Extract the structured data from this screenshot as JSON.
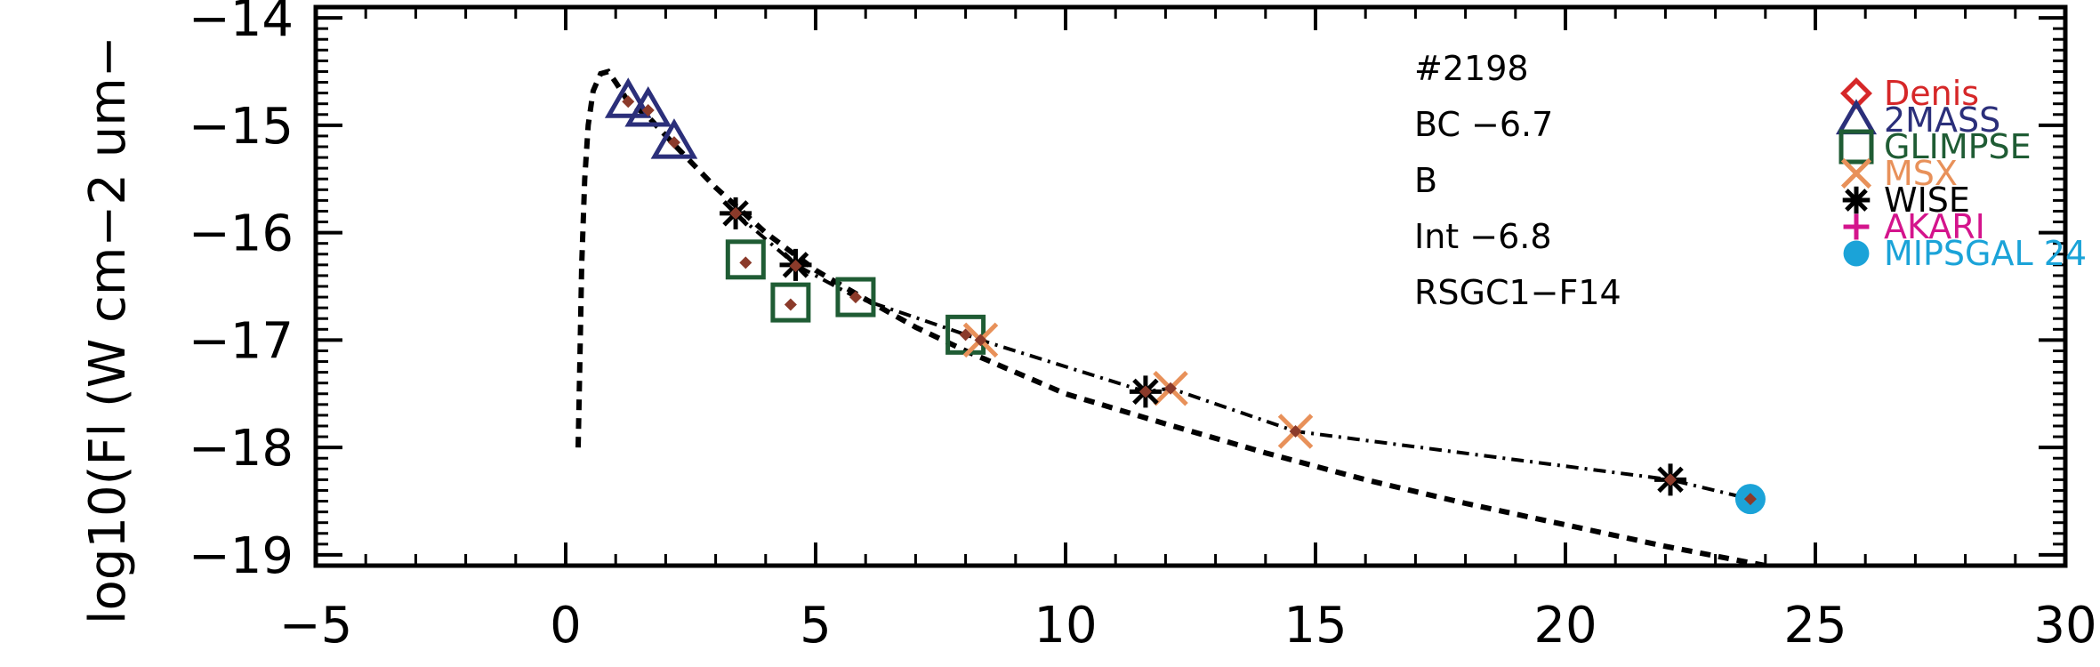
{
  "chart_data": {
    "type": "scatter",
    "ylabel": "log10(Fl (W cm−2 um−",
    "xlim": [
      -5,
      30
    ],
    "ylim": [
      -19.1,
      -13.9
    ],
    "x_ticks": [
      -5,
      0,
      5,
      10,
      15,
      20,
      25,
      30
    ],
    "x_tick_labels": [
      "−5",
      "0",
      "5",
      "10",
      "15",
      "20",
      "25",
      "30"
    ],
    "y_ticks": [
      -14,
      -15,
      -16,
      -17,
      -18,
      -19
    ],
    "y_tick_labels": [
      "−14",
      "−15",
      "−16",
      "−17",
      "−18",
      "−19"
    ],
    "annotations": [
      "#2198",
      "BC  −6.7",
      "B",
      "Int  −6.8",
      "RSGC1−F14"
    ],
    "legend": [
      {
        "name": "Denis",
        "marker": "diamond",
        "color": "#d62728"
      },
      {
        "name": "2MASS",
        "marker": "triangle",
        "color": "#2b2f7a"
      },
      {
        "name": "GLIMPSE",
        "marker": "square",
        "color": "#1f5c34"
      },
      {
        "name": "MSX",
        "marker": "x",
        "color": "#e8915a"
      },
      {
        "name": "WISE",
        "marker": "asterisk",
        "color": "#000000"
      },
      {
        "name": "AKARI",
        "marker": "plus",
        "color": "#d4148c"
      },
      {
        "name": "MIPSGAL 24",
        "marker": "circle",
        "color": "#1ba3d8"
      }
    ],
    "series": [
      {
        "name": "2MASS",
        "marker": "triangle",
        "color": "#2b2f7a",
        "points": [
          [
            1.25,
            -14.78
          ],
          [
            1.65,
            -14.86
          ],
          [
            2.17,
            -15.16
          ]
        ]
      },
      {
        "name": "GLIMPSE",
        "marker": "square",
        "color": "#1f5c34",
        "points": [
          [
            3.6,
            -16.25
          ],
          [
            4.5,
            -16.65
          ],
          [
            5.8,
            -16.6
          ],
          [
            8.0,
            -16.95
          ]
        ]
      },
      {
        "name": "MSX",
        "marker": "x",
        "color": "#e8915a",
        "points": [
          [
            8.3,
            -17.0
          ],
          [
            12.1,
            -17.45
          ],
          [
            14.6,
            -17.85
          ]
        ]
      },
      {
        "name": "WISE",
        "marker": "asterisk",
        "color": "#000000",
        "points": [
          [
            3.4,
            -15.82
          ],
          [
            4.6,
            -16.3
          ],
          [
            11.6,
            -17.48
          ],
          [
            22.1,
            -18.3
          ]
        ]
      },
      {
        "name": "MIPSGAL 24",
        "marker": "circle",
        "color": "#1ba3d8",
        "points": [
          [
            23.7,
            -18.48
          ]
        ]
      },
      {
        "name": "",
        "marker": "small-diamond",
        "color": "#8b3a2a",
        "points": [
          [
            1.25,
            -14.78
          ],
          [
            1.65,
            -14.86
          ],
          [
            2.17,
            -15.16
          ],
          [
            3.4,
            -15.82
          ],
          [
            3.6,
            -16.28
          ],
          [
            4.5,
            -16.67
          ],
          [
            4.6,
            -16.31
          ],
          [
            5.8,
            -16.6
          ],
          [
            8.0,
            -16.95
          ],
          [
            8.3,
            -17.0
          ],
          [
            11.6,
            -17.48
          ],
          [
            12.1,
            -17.45
          ],
          [
            14.6,
            -17.85
          ],
          [
            22.1,
            -18.3
          ],
          [
            23.7,
            -18.48
          ]
        ]
      }
    ],
    "model_curve": {
      "style": "dashed",
      "points": [
        [
          0.25,
          -18.0
        ],
        [
          0.28,
          -17.3
        ],
        [
          0.32,
          -16.3
        ],
        [
          0.38,
          -15.5
        ],
        [
          0.45,
          -15.0
        ],
        [
          0.55,
          -14.68
        ],
        [
          0.7,
          -14.52
        ],
        [
          0.85,
          -14.5
        ],
        [
          1.0,
          -14.6
        ],
        [
          1.25,
          -14.78
        ],
        [
          1.65,
          -14.92
        ],
        [
          2.17,
          -15.18
        ],
        [
          3.0,
          -15.58
        ],
        [
          4.0,
          -16.0
        ],
        [
          5.0,
          -16.35
        ],
        [
          6.0,
          -16.62
        ],
        [
          7.0,
          -16.88
        ],
        [
          8.0,
          -17.1
        ],
        [
          10.0,
          -17.5
        ],
        [
          12.0,
          -17.78
        ],
        [
          14.0,
          -18.05
        ],
        [
          16.0,
          -18.3
        ],
        [
          18.0,
          -18.52
        ],
        [
          20.0,
          -18.72
        ],
        [
          22.0,
          -18.92
        ],
        [
          24.0,
          -19.1
        ]
      ]
    },
    "connect_curve": {
      "style": "dash-dot",
      "points": [
        [
          3.4,
          -15.82
        ],
        [
          4.6,
          -16.3
        ],
        [
          5.8,
          -16.6
        ],
        [
          8.0,
          -16.95
        ],
        [
          8.3,
          -17.0
        ],
        [
          11.6,
          -17.48
        ],
        [
          12.1,
          -17.45
        ],
        [
          14.6,
          -17.85
        ],
        [
          22.1,
          -18.3
        ],
        [
          23.7,
          -18.48
        ]
      ]
    }
  }
}
